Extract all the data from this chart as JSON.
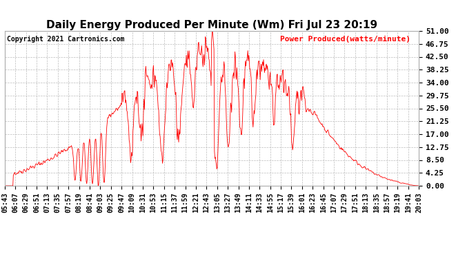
{
  "title": "Daily Energy Produced Per Minute (Wm) Fri Jul 23 20:19",
  "copyright": "Copyright 2021 Cartronics.com",
  "legend_label": "Power Produced(watts/minute)",
  "line_color": "red",
  "background_color": "#ffffff",
  "grid_color": "#bbbbbb",
  "yticks": [
    0.0,
    4.25,
    8.5,
    12.75,
    17.0,
    21.25,
    25.5,
    29.75,
    34.0,
    38.25,
    42.5,
    46.75,
    51.0
  ],
  "ylim": [
    0,
    51.0
  ],
  "xtick_labels": [
    "05:43",
    "06:07",
    "06:29",
    "06:51",
    "07:13",
    "07:35",
    "07:57",
    "08:19",
    "08:41",
    "09:03",
    "09:25",
    "09:47",
    "10:09",
    "10:31",
    "10:53",
    "11:15",
    "11:37",
    "11:59",
    "12:21",
    "12:43",
    "13:05",
    "13:27",
    "13:49",
    "14:11",
    "14:33",
    "14:55",
    "15:17",
    "15:39",
    "16:01",
    "16:23",
    "16:45",
    "17:07",
    "17:29",
    "17:51",
    "18:13",
    "18:35",
    "18:57",
    "19:19",
    "19:41",
    "20:03"
  ],
  "title_fontsize": 11,
  "copyright_fontsize": 7,
  "legend_fontsize": 8,
  "tick_fontsize": 7,
  "ytick_fontsize": 8
}
